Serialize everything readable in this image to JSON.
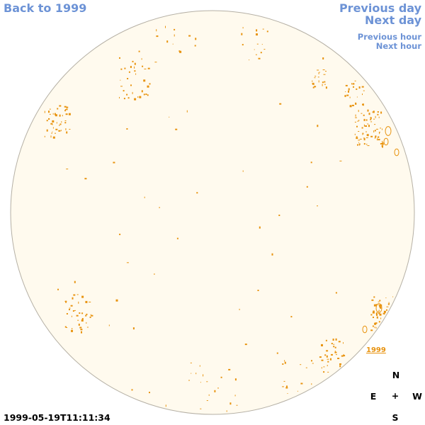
{
  "nav": {
    "back_label": "Back to 1999",
    "prev_day_label": "Previous day",
    "next_day_label": "Next day",
    "prev_hour_label": "Previous hour",
    "next_hour_label": "Next hour",
    "link_color": "#6d93d6"
  },
  "disk": {
    "fill_color": "#fffaee",
    "stroke_color": "#b5b0a5",
    "feature_color": "#e8930f",
    "year_label": "1999"
  },
  "timestamp": "1999-05-19T11:11:34",
  "compass": {
    "north": "N",
    "east": "E",
    "center": "+",
    "west": "W",
    "south": "S"
  }
}
